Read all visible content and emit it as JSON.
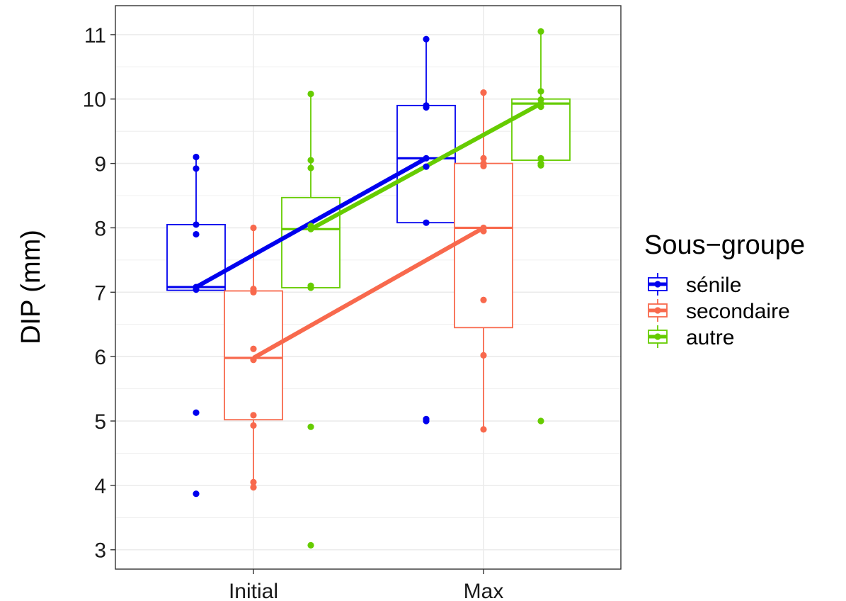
{
  "chart_data": {
    "type": "box",
    "ylabel": "DIP (mm)",
    "xlabel": "",
    "categories": [
      "Initial",
      "Max"
    ],
    "ylim": [
      2.7,
      11.45
    ],
    "yticks": [
      3,
      4,
      5,
      6,
      7,
      8,
      9,
      10,
      11
    ],
    "grid": true,
    "legend": {
      "title": "Sous−groupe",
      "position": "right"
    },
    "series": [
      {
        "name": "sénile",
        "color": "#0000ee",
        "boxes": [
          {
            "category": "Initial",
            "q1": 7.03,
            "median": 7.08,
            "q3": 8.05,
            "whisker_low": 7.03,
            "whisker_high": 9.1
          },
          {
            "category": "Max",
            "q1": 8.08,
            "median": 9.08,
            "q3": 9.9,
            "whisker_low": 8.08,
            "whisker_high": 10.93
          }
        ],
        "points": [
          {
            "category": "Initial",
            "values": [
              9.1,
              8.92,
              8.05,
              7.9,
              7.08,
              7.04,
              5.13,
              3.87
            ]
          },
          {
            "category": "Max",
            "values": [
              10.93,
              9.9,
              9.87,
              9.08,
              8.95,
              8.08,
              5.03,
              5.0
            ]
          }
        ],
        "trend": [
          7.08,
          9.08
        ]
      },
      {
        "name": "secondaire",
        "color": "#f8694d",
        "boxes": [
          {
            "category": "Initial",
            "q1": 5.02,
            "median": 5.98,
            "q3": 7.02,
            "whisker_low": 3.97,
            "whisker_high": 8.0
          },
          {
            "category": "Max",
            "q1": 6.45,
            "median": 8.0,
            "q3": 9.0,
            "whisker_low": 4.87,
            "whisker_high": 10.1
          }
        ],
        "points": [
          {
            "category": "Initial",
            "values": [
              8.0,
              7.05,
              7.0,
              6.12,
              5.95,
              5.09,
              4.93,
              4.05,
              3.97
            ]
          },
          {
            "category": "Max",
            "values": [
              10.1,
              9.08,
              9.0,
              8.96,
              8.0,
              7.95,
              6.88,
              6.02,
              4.87
            ]
          }
        ],
        "trend": [
          5.98,
          8.0
        ]
      },
      {
        "name": "autre",
        "color": "#66cc00",
        "boxes": [
          {
            "category": "Initial",
            "q1": 7.07,
            "median": 7.98,
            "q3": 8.47,
            "whisker_low": 7.07,
            "whisker_high": 10.08
          },
          {
            "category": "Max",
            "q1": 9.05,
            "median": 9.93,
            "q3": 10.0,
            "whisker_low": 8.97,
            "whisker_high": 11.05
          }
        ],
        "points": [
          {
            "category": "Initial",
            "values": [
              10.08,
              9.05,
              8.93,
              8.03,
              7.98,
              7.1,
              7.07,
              4.91,
              3.07
            ]
          },
          {
            "category": "Max",
            "values": [
              11.05,
              10.12,
              9.99,
              9.93,
              9.88,
              9.08,
              9.0,
              8.97,
              5.0
            ]
          }
        ],
        "trend": [
          7.98,
          9.93
        ]
      }
    ]
  }
}
